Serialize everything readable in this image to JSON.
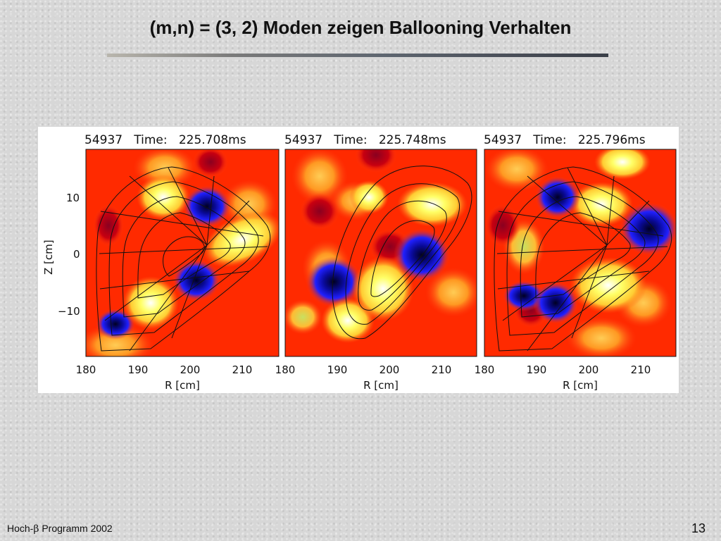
{
  "slide": {
    "title": "(m,n) = (3, 2) Moden zeigen Ballooning Verhalten",
    "footer_prefix": "Hoch-",
    "footer_symbol": "β",
    "footer_suffix": " Programm 2002",
    "page_number": "13"
  },
  "figure": {
    "panels": [
      {
        "header": "54937   Time:   225.708ms"
      },
      {
        "header": "54937   Time:   225.748ms"
      },
      {
        "header": "54937   Time:   225.796ms"
      }
    ],
    "y_axis": {
      "label": "Z [cm]",
      "ticks": [
        "10",
        "0",
        "−10"
      ]
    },
    "x_axis": {
      "label": "R [cm]",
      "ticks": [
        "180",
        "190",
        "200",
        "210"
      ]
    },
    "colors": {
      "background": "#ff2a00",
      "orange": "#ff8c1a",
      "yellow": "#ffff66",
      "blue": "#1a1aff",
      "navy": "#000033"
    }
  }
}
